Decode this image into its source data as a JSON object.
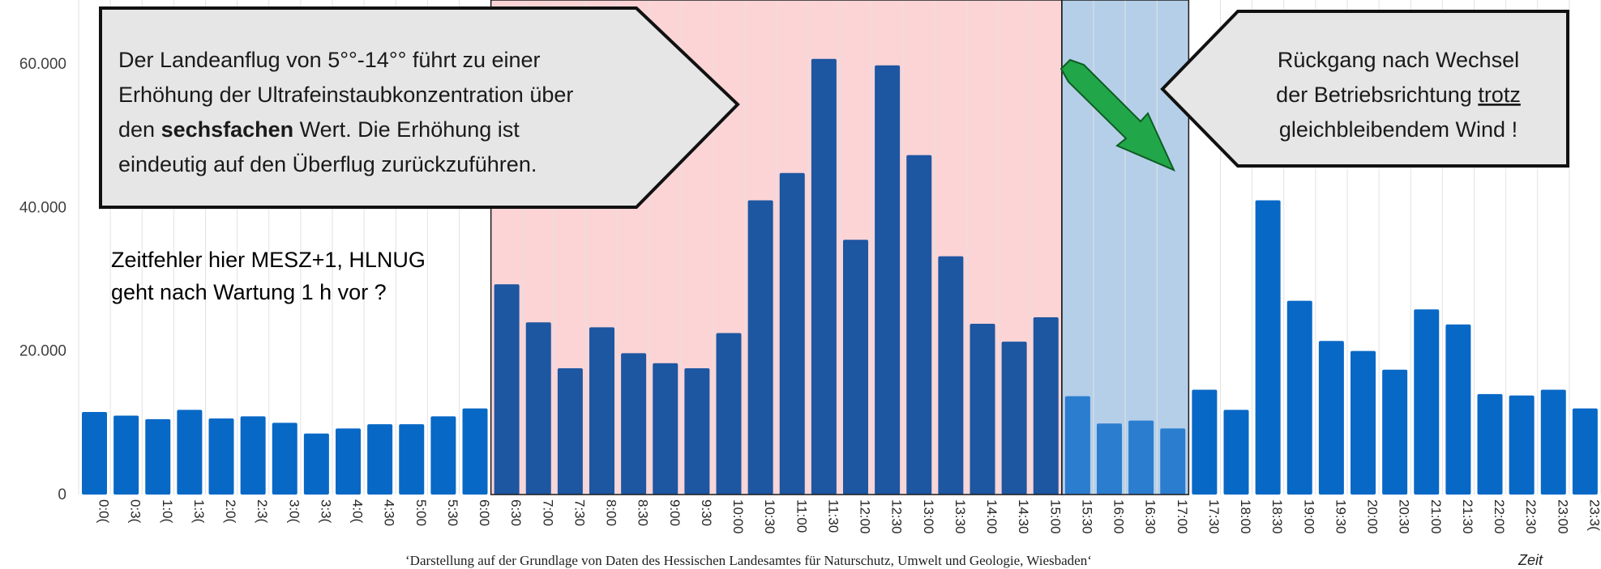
{
  "chart_data": {
    "type": "bar",
    "xlabel": "Zeit",
    "ylabel": "",
    "ylim": [
      0,
      68000
    ],
    "yticks": [
      0,
      20000,
      40000,
      60000
    ],
    "ytick_labels": [
      "0",
      "20.000",
      "40.000",
      "60.000"
    ],
    "grid": "vertical",
    "categories": [
      "0:00",
      "0:30",
      "1:00",
      "1:30",
      "2:00",
      "2:30",
      "3:00",
      "3:30",
      "4:00",
      "4:30",
      "5:00",
      "5:30",
      "6:00",
      "6:30",
      "7:00",
      "7:30",
      "8:00",
      "8:30",
      "9:00",
      "9:30",
      "10:00",
      "10:30",
      "11:00",
      "11:30",
      "12:00",
      "12:30",
      "13:00",
      "13:30",
      "14:00",
      "14:30",
      "15:00",
      "15:30",
      "16:00",
      "16:30",
      "17:00",
      "17:30",
      "18:00",
      "18:30",
      "19:00",
      "19:30",
      "20:00",
      "20:30",
      "21:00",
      "21:30",
      "22:00",
      "22:30",
      "23:00",
      "23:30"
    ],
    "tick_labels_shown": [
      "0:0(",
      "0:3(",
      "1:0(",
      "1:3(",
      "2:0(",
      "2:3(",
      "3:0(",
      "3:3(",
      "4:0(",
      "4:30",
      "5:00",
      "5:30",
      "6:00",
      "6:30",
      "7:00",
      "7:30",
      "8:00",
      "8:30",
      "9:00",
      "9:30",
      "10:00",
      "10:30",
      "11:00",
      "11:30",
      "12:00",
      "12:30",
      "13:00",
      "13:30",
      "14:00",
      "14:30",
      "15:00",
      "15:30",
      "16:00",
      "16:30",
      "17:00",
      "17:30",
      "18:00",
      "18:30",
      "19:00",
      "19:30",
      "20:00",
      "20:30",
      "21:00",
      "21:30",
      "22:00",
      "22:30",
      "23:00",
      "23:3("
    ],
    "values": [
      11500,
      11000,
      10500,
      11800,
      10600,
      10900,
      10000,
      8500,
      9200,
      9800,
      9800,
      10900,
      12000,
      29300,
      24000,
      17600,
      23300,
      19700,
      18300,
      17600,
      22500,
      41000,
      44800,
      60700,
      35500,
      59800,
      47300,
      33200,
      23800,
      21300,
      24700,
      13700,
      9900,
      10300,
      9200,
      14600,
      11800,
      41000,
      27000,
      21400,
      20000,
      17400,
      25800,
      23700,
      14000,
      13800,
      14600,
      12000
    ],
    "colors": {
      "normal": "#0868c6",
      "highlight": "#1d56a1",
      "blue_zone": "#2b7dcf",
      "red_band": "#fcd4d6",
      "blue_band": "#b5cfe9"
    },
    "zones": {
      "red_start": 13,
      "red_end": 30,
      "blue_start": 31,
      "blue_end": 34
    }
  },
  "callouts": {
    "left_box_lines": [
      {
        "parts": [
          {
            "t": "Der Landeanflug von 5°°-14°° führt zu einer",
            "b": false
          }
        ]
      },
      {
        "parts": [
          {
            "t": "Erhöhung der Ultrafeinstaubkonzentration über",
            "b": false
          }
        ]
      },
      {
        "parts": [
          {
            "t": "den ",
            "b": false
          },
          {
            "t": "sechsfachen",
            "b": true
          },
          {
            "t": " Wert. Die Erhöhung ist",
            "b": false
          }
        ]
      },
      {
        "parts": [
          {
            "t": "eindeutig auf den Überflug zurückzuführen.",
            "b": false
          }
        ]
      }
    ],
    "right_box_lines": [
      {
        "parts": [
          {
            "t": "Rückgang nach Wechsel",
            "u": false
          }
        ]
      },
      {
        "parts": [
          {
            "t": "der Betriebsrichtung ",
            "u": false
          },
          {
            "t": "trotz",
            "u": true
          }
        ]
      },
      {
        "parts": [
          {
            "t": "gleichbleibendem Wind !",
            "u": false
          }
        ]
      }
    ],
    "note_lines": [
      "Zeitfehler hier MESZ+1, HLNUG",
      "geht nach Wartung 1 h vor ?"
    ],
    "arrow_color": "#22a64a"
  },
  "source_text": "‘Darstellung auf der Grundlage von Daten des Hessischen Landesamtes  für Naturschutz, Umwelt und Geologie, Wiesbaden‘"
}
